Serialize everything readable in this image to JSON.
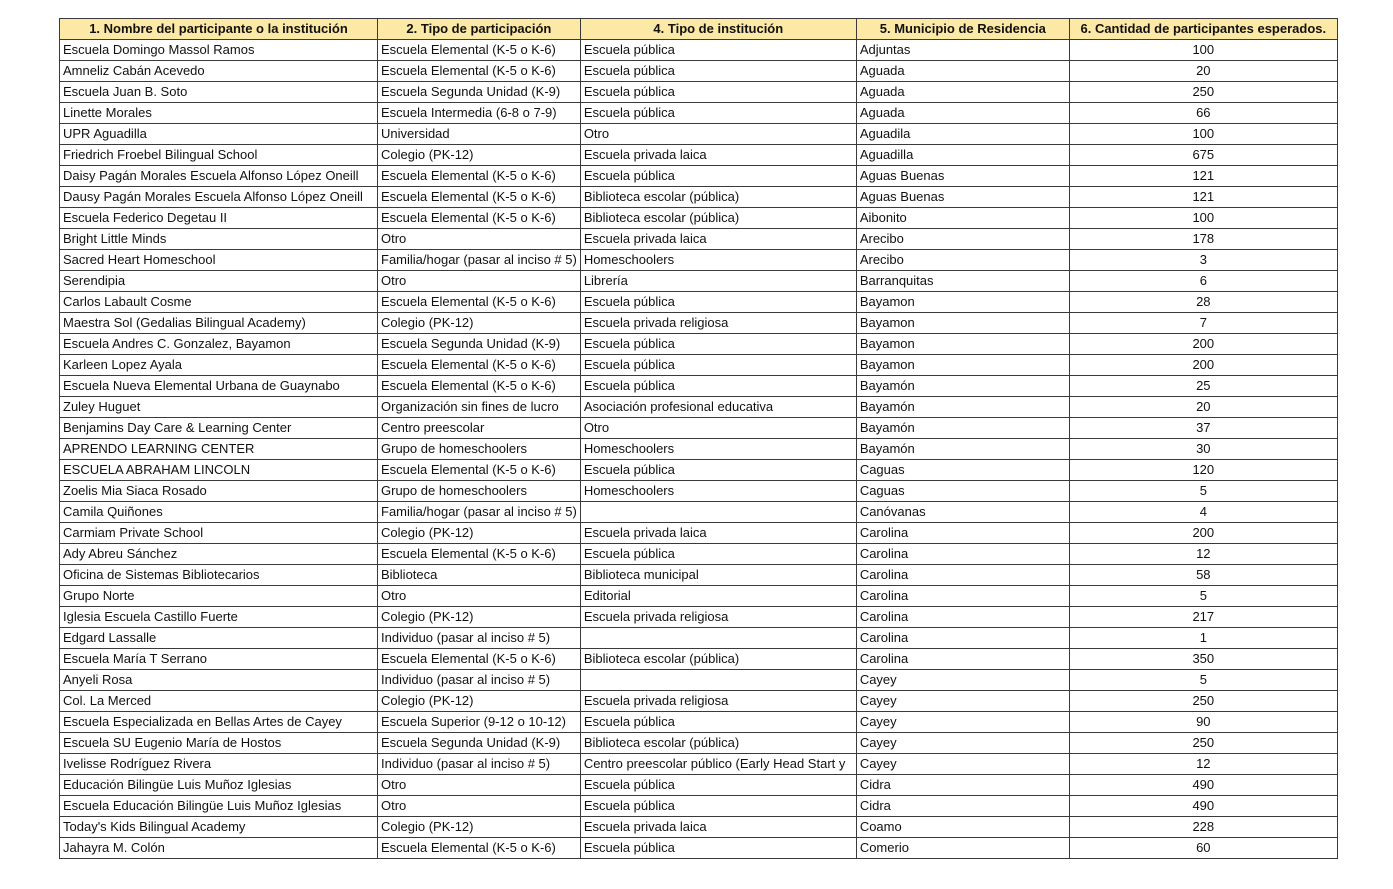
{
  "table": {
    "header_color": "#fde9a6",
    "columns": [
      "1. Nombre del participante o la institución",
      "2. Tipo de participación",
      "4. Tipo de institución",
      "5. Municipio de Residencia",
      "6. Cantidad de participantes esperados."
    ],
    "rows": [
      [
        "Escuela Domingo Massol Ramos",
        "Escuela Elemental (K-5 o K-6)",
        "Escuela pública",
        "Adjuntas",
        "100"
      ],
      [
        "Amneliz Cabán Acevedo",
        "Escuela Elemental (K-5 o K-6)",
        "Escuela pública",
        "Aguada",
        "20"
      ],
      [
        "Escuela Juan B. Soto",
        "Escuela Segunda Unidad (K-9)",
        "Escuela pública",
        "Aguada",
        "250"
      ],
      [
        "Linette Morales",
        "Escuela Intermedia (6-8 o 7-9)",
        "Escuela pública",
        "Aguada",
        "66"
      ],
      [
        "UPR Aguadilla",
        "Universidad",
        "Otro",
        "Aguadila",
        "100"
      ],
      [
        "Friedrich Froebel Bilingual School",
        "Colegio (PK-12)",
        "Escuela privada laica",
        "Aguadilla",
        "675"
      ],
      [
        "Daisy Pagán Morales Escuela Alfonso López Oneill",
        "Escuela Elemental (K-5 o K-6)",
        "Escuela pública",
        "Aguas Buenas",
        "121"
      ],
      [
        "Dausy Pagán Morales Escuela Alfonso López Oneill",
        "Escuela Elemental (K-5 o K-6)",
        "Biblioteca escolar (pública)",
        "Aguas Buenas",
        "121"
      ],
      [
        "Escuela Federico Degetau II",
        "Escuela Elemental (K-5 o K-6)",
        "Biblioteca escolar (pública)",
        "Aibonito",
        "100"
      ],
      [
        "Bright Little Minds",
        "Otro",
        "Escuela privada laica",
        "Arecibo",
        "178"
      ],
      [
        "Sacred Heart Homeschool",
        "Familia/hogar (pasar al inciso # 5)",
        "Homeschoolers",
        "Arecibo",
        "3"
      ],
      [
        "Serendipia",
        "Otro",
        "Librería",
        "Barranquitas",
        "6"
      ],
      [
        "Carlos Labault Cosme",
        "Escuela Elemental (K-5 o K-6)",
        "Escuela pública",
        "Bayamon",
        "28"
      ],
      [
        "Maestra Sol (Gedalias Bilingual Academy)",
        "Colegio (PK-12)",
        "Escuela privada religiosa",
        "Bayamon",
        "7"
      ],
      [
        "Escuela Andres C. Gonzalez, Bayamon",
        "Escuela Segunda Unidad (K-9)",
        "Escuela pública",
        "Bayamon",
        "200"
      ],
      [
        "Karleen Lopez Ayala",
        "Escuela Elemental (K-5 o K-6)",
        "Escuela pública",
        "Bayamon",
        "200"
      ],
      [
        "Escuela Nueva Elemental Urbana de Guaynabo",
        "Escuela Elemental (K-5 o K-6)",
        "Escuela pública",
        "Bayamón",
        "25"
      ],
      [
        "Zuley Huguet",
        "Organización sin fines de lucro",
        "Asociación profesional educativa",
        "Bayamón",
        "20"
      ],
      [
        "Benjamins Day Care & Learning Center",
        "Centro preescolar",
        "Otro",
        "Bayamón",
        "37"
      ],
      [
        "APRENDO LEARNING CENTER",
        "Grupo de homeschoolers",
        "Homeschoolers",
        "Bayamón",
        "30"
      ],
      [
        "ESCUELA ABRAHAM LINCOLN",
        "Escuela Elemental (K-5 o K-6)",
        "Escuela pública",
        "Caguas",
        "120"
      ],
      [
        "Zoelis Mia Siaca Rosado",
        "Grupo de homeschoolers",
        "Homeschoolers",
        "Caguas",
        "5"
      ],
      [
        "Camila Quiñones",
        "Familia/hogar (pasar al inciso # 5)",
        "",
        "Canóvanas",
        "4"
      ],
      [
        "Carmiam Private School",
        "Colegio (PK-12)",
        "Escuela privada laica",
        "Carolina",
        "200"
      ],
      [
        "Ady Abreu Sánchez",
        "Escuela Elemental (K-5 o K-6)",
        "Escuela pública",
        "Carolina",
        "12"
      ],
      [
        "Oficina de Sistemas Bibliotecarios",
        "Biblioteca",
        "Biblioteca municipal",
        "Carolina",
        "58"
      ],
      [
        "Grupo Norte",
        "Otro",
        "Editorial",
        "Carolina",
        "5"
      ],
      [
        "Iglesia Escuela Castillo Fuerte",
        "Colegio (PK-12)",
        "Escuela privada religiosa",
        "Carolina",
        "217"
      ],
      [
        "Edgard Lassalle",
        "Individuo (pasar al inciso # 5)",
        "",
        "Carolina",
        "1"
      ],
      [
        "Escuela María T Serrano",
        "Escuela Elemental (K-5 o K-6)",
        "Biblioteca escolar (pública)",
        "Carolina",
        "350"
      ],
      [
        "Anyeli Rosa",
        "Individuo (pasar al inciso # 5)",
        "",
        "Cayey",
        "5"
      ],
      [
        "Col. La Merced",
        "Colegio (PK-12)",
        "Escuela privada religiosa",
        "Cayey",
        "250"
      ],
      [
        "Escuela Especializada en Bellas Artes de Cayey",
        "Escuela Superior (9-12 o 10-12)",
        "Escuela pública",
        "Cayey",
        "90"
      ],
      [
        "Escuela SU Eugenio María de Hostos",
        "Escuela Segunda Unidad (K-9)",
        "Biblioteca escolar (pública)",
        "Cayey",
        "250"
      ],
      [
        "Ivelisse Rodríguez Rivera",
        "Individuo (pasar al inciso # 5)",
        "Centro preescolar público (Early Head Start y",
        "Cayey",
        "12"
      ],
      [
        "Educación Bilingüe Luis Muñoz Iglesias",
        "Otro",
        "Escuela pública",
        "Cidra",
        "490"
      ],
      [
        "Escuela Educación Bilingüe Luis Muñoz Iglesias",
        "Otro",
        "Escuela pública",
        "Cidra",
        "490"
      ],
      [
        "Today's Kids Bilingual Academy",
        "Colegio (PK-12)",
        "Escuela privada laica",
        "Coamo",
        "228"
      ],
      [
        "Jahayra M. Colón",
        "Escuela Elemental (K-5 o K-6)",
        "Escuela pública",
        "Comerio",
        "60"
      ]
    ]
  }
}
